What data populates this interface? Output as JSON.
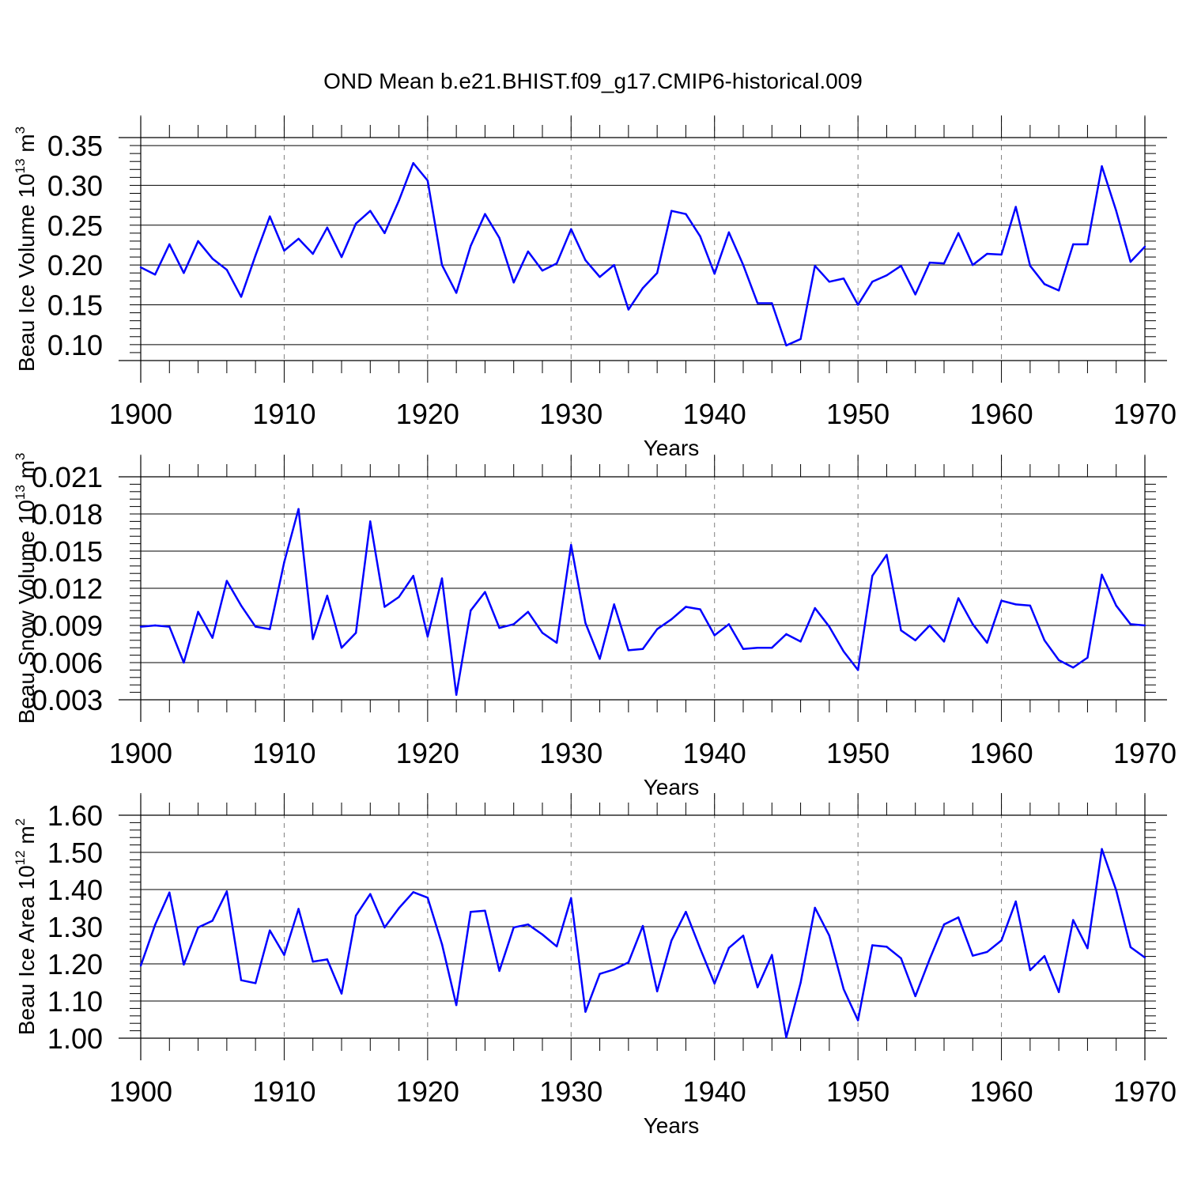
{
  "title": "OND Mean b.e21.BHIST.f09_g17.CMIP6-historical.009",
  "colors": {
    "line": "#0000ff",
    "axis": "#000000",
    "grid": "#808080"
  },
  "chart_data": [
    {
      "type": "line",
      "name": "ice-volume",
      "ylabel": "Beau Ice Volume 10",
      "ylabel_exp": "13",
      "ylabel_unit": " m",
      "ylabel_unit_exp": "3",
      "xlabel": "Years",
      "xlim": [
        1900,
        1970
      ],
      "ylim": [
        0.08,
        0.36
      ],
      "xticks": [
        1900,
        1910,
        1920,
        1930,
        1940,
        1950,
        1960,
        1970
      ],
      "xtick_labels": [
        "1900",
        "1910",
        "1920",
        "1930",
        "1940",
        "1950",
        "1960",
        "1970"
      ],
      "yticks": [
        0.1,
        0.15,
        0.2,
        0.25,
        0.3,
        0.35
      ],
      "ytick_labels": [
        "0.10",
        "0.15",
        "0.20",
        "0.25",
        "0.30",
        "0.35"
      ],
      "minor_y_step": 0.01,
      "grid_x": true,
      "x_start": 1900,
      "values": [
        0.197,
        0.188,
        0.226,
        0.19,
        0.23,
        0.208,
        0.194,
        0.16,
        0.212,
        0.261,
        0.218,
        0.233,
        0.214,
        0.247,
        0.21,
        0.252,
        0.268,
        0.24,
        0.281,
        0.328,
        0.306,
        0.2,
        0.165,
        0.224,
        0.264,
        0.234,
        0.178,
        0.217,
        0.193,
        0.202,
        0.245,
        0.206,
        0.185,
        0.2,
        0.144,
        0.171,
        0.19,
        0.268,
        0.264,
        0.236,
        0.189,
        0.241,
        0.2,
        0.152,
        0.152,
        0.099,
        0.107,
        0.199,
        0.179,
        0.183,
        0.15,
        0.179,
        0.187,
        0.199,
        0.163,
        0.203,
        0.202,
        0.24,
        0.2,
        0.214,
        0.213,
        0.273,
        0.199,
        0.176,
        0.168,
        0.226,
        0.226,
        0.324,
        0.268,
        0.204,
        0.223
      ]
    },
    {
      "type": "line",
      "name": "snow-volume",
      "ylabel": "Beau Snow Volume 10",
      "ylabel_exp": "13",
      "ylabel_unit": " m",
      "ylabel_unit_exp": "3",
      "xlabel": "Years",
      "xlim": [
        1900,
        1970
      ],
      "ylim": [
        0.003,
        0.021
      ],
      "xticks": [
        1900,
        1910,
        1920,
        1930,
        1940,
        1950,
        1960,
        1970
      ],
      "xtick_labels": [
        "1900",
        "1910",
        "1920",
        "1930",
        "1940",
        "1950",
        "1960",
        "1970"
      ],
      "yticks": [
        0.003,
        0.006,
        0.009,
        0.012,
        0.015,
        0.018,
        0.021
      ],
      "ytick_labels": [
        "0.003",
        "0.006",
        "0.009",
        "0.012",
        "0.015",
        "0.018",
        "0.021"
      ],
      "minor_y_step": 0.0006,
      "grid_x": true,
      "x_start": 1900,
      "values": [
        0.0089,
        0.009,
        0.0089,
        0.006,
        0.0101,
        0.008,
        0.0126,
        0.0106,
        0.0089,
        0.0087,
        0.0141,
        0.0184,
        0.0079,
        0.0114,
        0.0072,
        0.0084,
        0.0174,
        0.0105,
        0.0113,
        0.013,
        0.0081,
        0.0128,
        0.0034,
        0.0102,
        0.0117,
        0.0088,
        0.0091,
        0.0101,
        0.0084,
        0.0076,
        0.0155,
        0.0092,
        0.0063,
        0.0107,
        0.007,
        0.0071,
        0.0087,
        0.0095,
        0.0105,
        0.0103,
        0.0082,
        0.0091,
        0.0071,
        0.0072,
        0.0072,
        0.0083,
        0.0077,
        0.0104,
        0.0089,
        0.0069,
        0.0054,
        0.013,
        0.0147,
        0.0086,
        0.0078,
        0.009,
        0.0077,
        0.0112,
        0.0091,
        0.0076,
        0.011,
        0.0107,
        0.0106,
        0.0078,
        0.0062,
        0.0056,
        0.0064,
        0.0131,
        0.0106,
        0.0091,
        0.009
      ]
    },
    {
      "type": "line",
      "name": "ice-area",
      "ylabel": "Beau Ice Area 10",
      "ylabel_exp": "12",
      "ylabel_unit": " m",
      "ylabel_unit_exp": "2",
      "xlabel": "Years",
      "xlim": [
        1900,
        1970
      ],
      "ylim": [
        1.0,
        1.6
      ],
      "xticks": [
        1900,
        1910,
        1920,
        1930,
        1940,
        1950,
        1960,
        1970
      ],
      "xtick_labels": [
        "1900",
        "1910",
        "1920",
        "1930",
        "1940",
        "1950",
        "1960",
        "1970"
      ],
      "yticks": [
        1.0,
        1.1,
        1.2,
        1.3,
        1.4,
        1.5,
        1.6
      ],
      "ytick_labels": [
        "1.00",
        "1.10",
        "1.20",
        "1.30",
        "1.40",
        "1.50",
        "1.60"
      ],
      "minor_y_step": 0.02,
      "grid_x": true,
      "x_start": 1900,
      "values": [
        1.195,
        1.305,
        1.392,
        1.198,
        1.298,
        1.316,
        1.395,
        1.156,
        1.148,
        1.29,
        1.224,
        1.348,
        1.206,
        1.212,
        1.12,
        1.33,
        1.388,
        1.298,
        1.35,
        1.393,
        1.378,
        1.253,
        1.089,
        1.34,
        1.343,
        1.181,
        1.298,
        1.306,
        1.279,
        1.247,
        1.377,
        1.071,
        1.173,
        1.185,
        1.204,
        1.302,
        1.126,
        1.263,
        1.34,
        1.241,
        1.147,
        1.243,
        1.276,
        1.137,
        1.224,
        1.002,
        1.149,
        1.351,
        1.276,
        1.132,
        1.048,
        1.25,
        1.246,
        1.215,
        1.113,
        1.213,
        1.306,
        1.325,
        1.222,
        1.232,
        1.263,
        1.368,
        1.183,
        1.221,
        1.124,
        1.318,
        1.242,
        1.509,
        1.398,
        1.245,
        1.217
      ]
    }
  ]
}
